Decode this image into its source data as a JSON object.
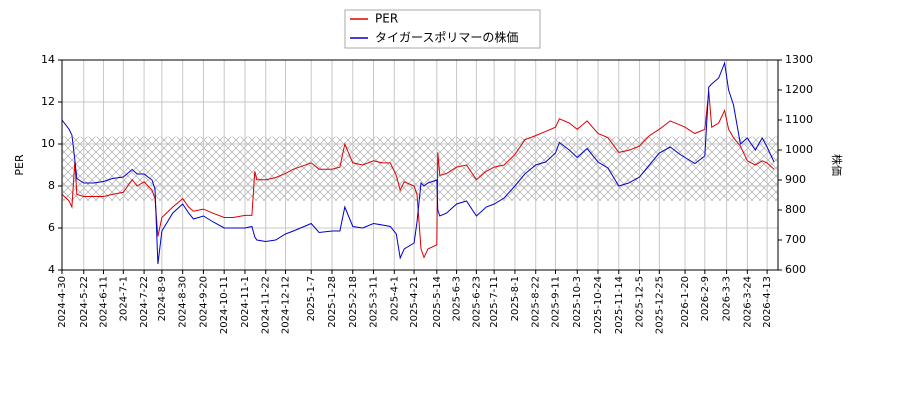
{
  "chart_data": {
    "type": "line",
    "x": [
      "2024-4-30",
      "2024-5-7",
      "2024-5-10",
      "2024-5-13",
      "2024-5-15",
      "2024-5-22",
      "2024-6-1",
      "2024-6-11",
      "2024-6-20",
      "2024-7-1",
      "2024-7-10",
      "2024-7-15",
      "2024-7-22",
      "2024-7-30",
      "2024-8-2",
      "2024-8-5",
      "2024-8-9",
      "2024-8-20",
      "2024-8-30",
      "2024-9-5",
      "2024-9-10",
      "2024-9-20",
      "2024-9-30",
      "2024-10-11",
      "2024-10-20",
      "2024-11-1",
      "2024-11-8",
      "2024-11-11",
      "2024-11-13",
      "2024-11-22",
      "2024-12-2",
      "2024-12-12",
      "2024-12-20",
      "2025-1-7",
      "2025-1-15",
      "2025-1-28",
      "2025-2-5",
      "2025-2-10",
      "2025-2-18",
      "2025-2-28",
      "2025-3-11",
      "2025-3-20",
      "2025-3-28",
      "2025-4-3",
      "2025-4-7",
      "2025-4-11",
      "2025-4-21",
      "2025-4-24",
      "2025-4-28",
      "2025-5-1",
      "2025-5-5",
      "2025-5-14",
      "2025-5-15",
      "2025-5-17",
      "2025-5-24",
      "2025-6-3",
      "2025-6-13",
      "2025-6-23",
      "2025-7-3",
      "2025-7-11",
      "2025-7-21",
      "2025-8-1",
      "2025-8-11",
      "2025-8-22",
      "2025-9-1",
      "2025-9-11",
      "2025-9-15",
      "2025-9-25",
      "2025-10-3",
      "2025-10-13",
      "2025-10-24",
      "2025-11-3",
      "2025-11-14",
      "2025-11-24",
      "2025-12-5",
      "2025-12-15",
      "2025-12-25",
      "2026-1-5",
      "2026-1-15",
      "2026-1-20",
      "2026-1-30",
      "2026-2-9",
      "2026-2-13",
      "2026-2-16",
      "2026-2-23",
      "2026-3-1",
      "2026-3-5",
      "2026-3-10",
      "2026-3-17",
      "2026-3-24",
      "2026-4-1",
      "2026-4-8",
      "2026-4-13",
      "2026-4-20"
    ],
    "series": [
      {
        "name": "PER",
        "color": "#dd0000",
        "axis": "y",
        "values": [
          7.6,
          7.3,
          7.0,
          9.2,
          7.6,
          7.5,
          7.5,
          7.5,
          7.6,
          7.7,
          8.3,
          8.0,
          8.2,
          7.8,
          7.4,
          5.6,
          6.5,
          7.0,
          7.4,
          7.0,
          6.8,
          6.9,
          6.7,
          6.5,
          6.5,
          6.6,
          6.6,
          8.7,
          8.3,
          8.3,
          8.4,
          8.6,
          8.8,
          9.1,
          8.8,
          8.8,
          8.9,
          10.0,
          9.1,
          9.0,
          9.2,
          9.1,
          9.1,
          8.5,
          7.8,
          8.2,
          8.0,
          7.6,
          5.0,
          4.6,
          5.0,
          5.2,
          9.6,
          8.5,
          8.6,
          8.9,
          9.0,
          8.3,
          8.7,
          8.9,
          9.0,
          9.5,
          10.2,
          10.4,
          10.6,
          10.8,
          11.2,
          11.0,
          10.7,
          11.1,
          10.5,
          10.3,
          9.6,
          9.7,
          9.9,
          10.4,
          10.7,
          11.1,
          10.9,
          10.8,
          10.5,
          10.7,
          12.5,
          10.8,
          11.0,
          11.6,
          10.7,
          10.3,
          9.9,
          9.2,
          9.0,
          9.2,
          9.1,
          8.8
        ]
      },
      {
        "name": "タイガースポリマーの株価",
        "color": "#0000cc",
        "axis": "y2",
        "values": [
          1100,
          1070,
          1050,
          965,
          905,
          890,
          890,
          895,
          905,
          910,
          935,
          920,
          920,
          900,
          870,
          620,
          730,
          790,
          820,
          790,
          770,
          780,
          760,
          740,
          740,
          740,
          745,
          710,
          700,
          695,
          700,
          720,
          730,
          755,
          725,
          730,
          730,
          810,
          745,
          740,
          755,
          750,
          745,
          720,
          640,
          670,
          690,
          760,
          890,
          880,
          890,
          900,
          800,
          780,
          790,
          820,
          830,
          780,
          810,
          820,
          840,
          880,
          920,
          950,
          960,
          990,
          1025,
          1000,
          975,
          1005,
          960,
          940,
          880,
          890,
          910,
          950,
          990,
          1010,
          985,
          975,
          955,
          980,
          1210,
          1220,
          1240,
          1290,
          1200,
          1150,
          1020,
          1040,
          1000,
          1040,
          1010,
          960
        ]
      }
    ],
    "xlim": [
      "2024-4-30",
      "2026-4-24"
    ],
    "xticks": [
      "2024-4-30",
      "2024-5-22",
      "2024-6-11",
      "2024-7-1",
      "2024-7-22",
      "2024-8-9",
      "2024-8-30",
      "2024-9-20",
      "2024-10-11",
      "2024-11-1",
      "2024-11-22",
      "2024-12-12",
      "2025-1-7",
      "2025-1-28",
      "2025-2-18",
      "2025-3-11",
      "2025-4-1",
      "2025-4-21",
      "2025-5-14",
      "2025-6-3",
      "2025-6-23",
      "2025-7-11",
      "2025-8-1",
      "2025-8-22",
      "2025-9-11",
      "2025-10-3",
      "2025-10-24",
      "2025-11-14",
      "2025-12-5",
      "2025-12-25",
      "2026-1-20",
      "2026-2-9",
      "2026-3-3",
      "2026-3-24",
      "2026-4-13"
    ],
    "ylim": [
      4,
      14
    ],
    "yticks": [
      4,
      6,
      8,
      10,
      12,
      14
    ],
    "y2lim": [
      600,
      1300
    ],
    "y2ticks": [
      600,
      700,
      800,
      900,
      1000,
      1100,
      1200,
      1300
    ],
    "ylabel": "PER",
    "y2label": "株価",
    "band": [
      7.3,
      10.35
    ],
    "grid": true
  }
}
